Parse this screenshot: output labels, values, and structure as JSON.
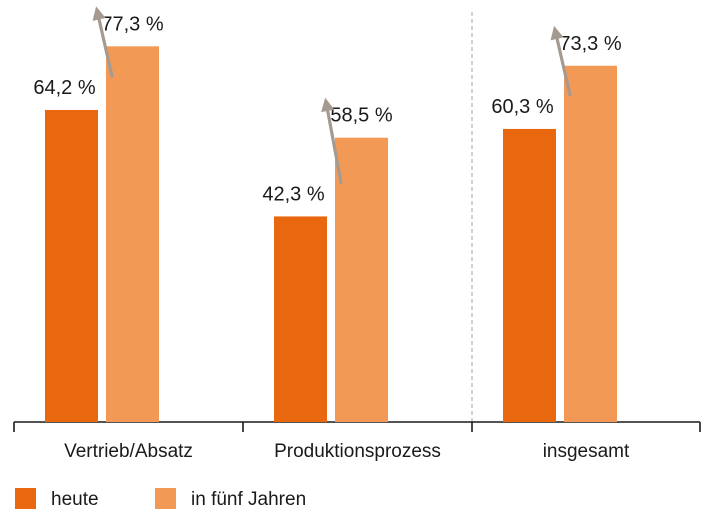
{
  "chart_data": {
    "type": "bar",
    "categories": [
      "Vertrieb/Absatz",
      "Produktionsprozess",
      "insgesamt"
    ],
    "series": [
      {
        "name": "heute",
        "values": [
          64.2,
          42.3,
          60.3
        ],
        "labels": [
          "64,2 %",
          "42,3 %",
          "60,3 %"
        ],
        "color": "#E8670F"
      },
      {
        "name": "in fünf Jahren",
        "values": [
          77.3,
          58.5,
          73.3
        ],
        "labels": [
          "77,3 %",
          "58,5 %",
          "73,3 %"
        ],
        "color": "#F29A55"
      }
    ],
    "ylim": [
      0,
      100
    ],
    "grid": false,
    "arrow_color": "#A59A90",
    "separator_color": "#B0B0B0",
    "legend_position": "bottom-left"
  }
}
